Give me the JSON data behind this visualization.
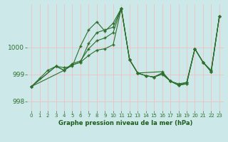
{
  "background_color": "#cde8e8",
  "grid_color": "#f0c0c0",
  "line_color": "#2d6e2d",
  "marker_color": "#2d6e2d",
  "xlabel": "Graphe pression niveau de la mer (hPa)",
  "xlabel_color": "#1a5c1a",
  "ylabel_ticks": [
    998,
    999,
    1000
  ],
  "xlim": [
    -0.5,
    23.5
  ],
  "ylim": [
    997.65,
    1001.6
  ],
  "xticks": [
    0,
    1,
    2,
    3,
    4,
    5,
    6,
    7,
    8,
    9,
    10,
    11,
    12,
    13,
    14,
    15,
    16,
    17,
    18,
    19,
    20,
    21,
    22,
    23
  ],
  "series": [
    {
      "x": [
        0,
        1,
        2,
        3,
        4,
        5,
        6,
        7,
        8,
        9,
        10,
        11,
        12,
        13,
        14,
        15,
        16,
        17,
        18,
        19,
        20,
        21,
        22,
        23
      ],
      "y": [
        998.55,
        998.85,
        999.15,
        999.3,
        999.25,
        999.3,
        1000.05,
        1000.65,
        1000.95,
        1000.6,
        1000.9,
        1001.45,
        999.55,
        999.05,
        998.95,
        998.9,
        999.0,
        998.75,
        998.6,
        998.65,
        999.95,
        999.45,
        999.1,
        1001.15
      ]
    },
    {
      "x": [
        0,
        3,
        4,
        5,
        6,
        7,
        8,
        9,
        10,
        11,
        12,
        13,
        16,
        17,
        18,
        19,
        20,
        21,
        22,
        23
      ],
      "y": [
        998.55,
        999.3,
        999.15,
        999.4,
        999.5,
        999.95,
        1000.25,
        1000.35,
        1000.55,
        1001.45,
        999.55,
        999.05,
        999.1,
        998.75,
        998.6,
        998.65,
        999.95,
        999.45,
        999.1,
        1001.15
      ]
    },
    {
      "x": [
        0,
        3,
        4,
        5,
        6,
        7,
        8,
        9,
        10,
        11,
        12,
        13,
        14,
        15,
        16,
        17,
        18,
        19,
        20,
        21,
        22,
        23
      ],
      "y": [
        998.55,
        999.3,
        999.15,
        999.35,
        999.45,
        999.7,
        999.9,
        999.95,
        1000.1,
        1001.45,
        999.55,
        999.05,
        998.95,
        998.9,
        999.05,
        998.75,
        998.65,
        998.7,
        999.95,
        999.45,
        999.15,
        1001.15
      ]
    },
    {
      "x": [
        0,
        4,
        5,
        6,
        7,
        8,
        9,
        10,
        11,
        12,
        13,
        14,
        15,
        16,
        17,
        18,
        19,
        20,
        21,
        22,
        23
      ],
      "y": [
        998.55,
        999.15,
        999.35,
        999.45,
        1000.15,
        1000.55,
        1000.65,
        1000.75,
        1001.45,
        999.55,
        999.05,
        998.95,
        998.9,
        999.05,
        998.75,
        998.6,
        998.7,
        999.95,
        999.45,
        999.1,
        1001.15
      ]
    }
  ]
}
